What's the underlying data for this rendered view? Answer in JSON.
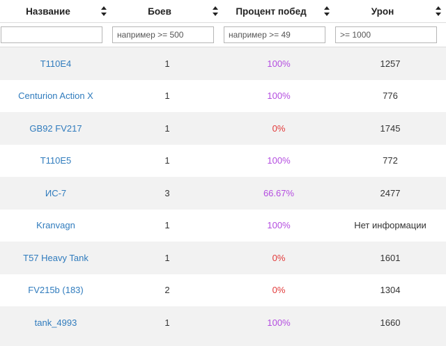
{
  "headers": [
    "Название",
    "Боев",
    "Процент побед",
    "Урон"
  ],
  "filters": [
    {
      "value": "",
      "placeholder": ""
    },
    {
      "value": "",
      "placeholder": "например >= 500"
    },
    {
      "value": "",
      "placeholder": "например >= 49"
    },
    {
      "value": "",
      "placeholder": ">= 1000"
    }
  ],
  "colors": {
    "link": "#2f7bbd",
    "win_high": "#b44de0",
    "win_low": "#e23b3b",
    "stripe": "#f2f2f2"
  },
  "rows": [
    {
      "name": "T110E4",
      "battles": "1",
      "winrate": "100%",
      "damage": "1257"
    },
    {
      "name": "Centurion Action X",
      "battles": "1",
      "winrate": "100%",
      "damage": "776"
    },
    {
      "name": "GB92 FV217",
      "battles": "1",
      "winrate": "0%",
      "damage": "1745"
    },
    {
      "name": "T110E5",
      "battles": "1",
      "winrate": "100%",
      "damage": "772"
    },
    {
      "name": "ИС-7",
      "battles": "3",
      "winrate": "66.67%",
      "damage": "2477"
    },
    {
      "name": "Kranvagn",
      "battles": "1",
      "winrate": "100%",
      "damage": "Нет информации"
    },
    {
      "name": "T57 Heavy Tank",
      "battles": "1",
      "winrate": "0%",
      "damage": "1601"
    },
    {
      "name": "FV215b (183)",
      "battles": "2",
      "winrate": "0%",
      "damage": "1304"
    },
    {
      "name": "tank_4993",
      "battles": "1",
      "winrate": "100%",
      "damage": "1660"
    }
  ]
}
